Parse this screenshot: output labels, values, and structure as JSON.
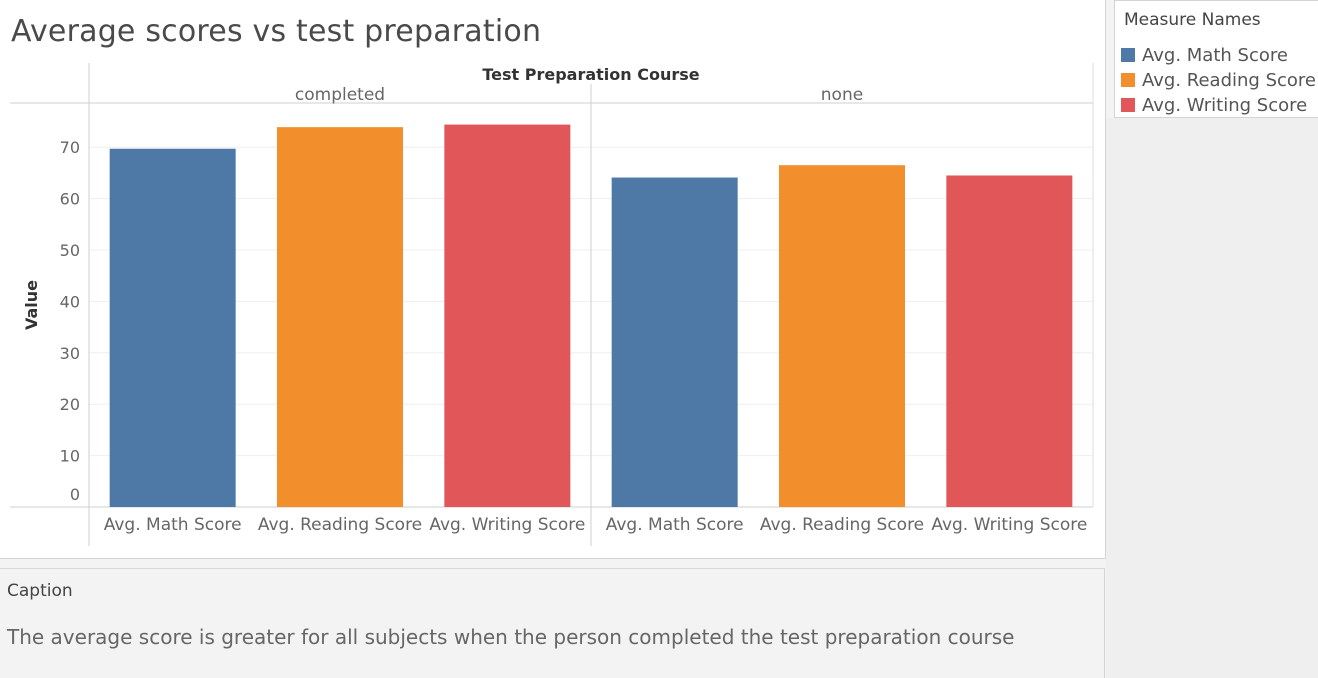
{
  "title": "Average scores vs test preparation",
  "legend": {
    "title": "Measure Names",
    "items": [
      {
        "label": "Avg. Math Score",
        "color": "#4e79a7"
      },
      {
        "label": "Avg. Reading Score",
        "color": "#f28e2b"
      },
      {
        "label": "Avg. Writing Score",
        "color": "#e15759"
      }
    ]
  },
  "caption": {
    "title": "Caption",
    "text": "The average score is greater for all subjects when the person completed the test preparation course"
  },
  "chart_data": {
    "type": "bar",
    "column_header_title": "Test Preparation Course",
    "panes": [
      "completed",
      "none"
    ],
    "categories": [
      "Avg. Math Score",
      "Avg. Reading Score",
      "Avg. Writing Score"
    ],
    "colors": [
      "#4e79a7",
      "#f28e2b",
      "#e15759"
    ],
    "values": [
      [
        69.7,
        73.9,
        74.4
      ],
      [
        64.1,
        66.5,
        64.5
      ]
    ],
    "ylabel": "Value",
    "yticks": [
      0,
      10,
      20,
      30,
      40,
      50,
      60,
      70
    ],
    "ylim": [
      0,
      78
    ],
    "grid": true
  }
}
